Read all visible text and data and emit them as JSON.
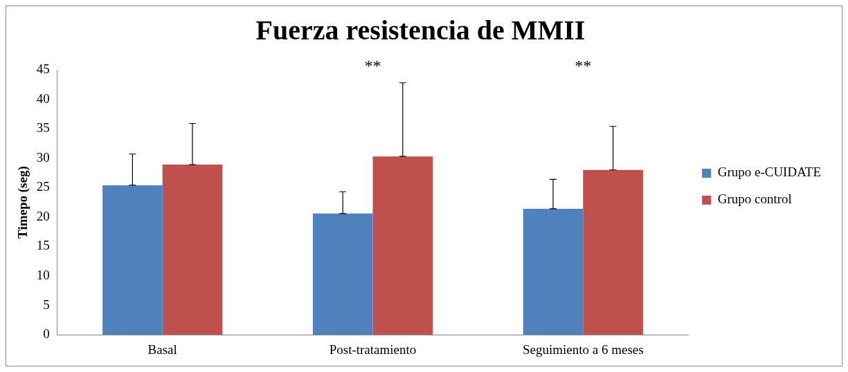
{
  "chart_data": {
    "type": "bar",
    "title": "Fuerza resistencia de MMII",
    "ylabel": "Timepo (seg)",
    "categories": [
      "Basal",
      "Post-tratamiento",
      "Seguimiento a 6 meses"
    ],
    "series": [
      {
        "name": "Grupo e-CUIDATE",
        "color": "#4f81bd",
        "values": [
          25.4,
          20.6,
          21.4
        ],
        "errors": [
          [
            25.4,
            30.7
          ],
          [
            20.6,
            24.3
          ],
          [
            21.4,
            26.4
          ]
        ]
      },
      {
        "name": "Grupo control",
        "color": "#c0504d",
        "values": [
          28.9,
          30.3,
          28.0
        ],
        "errors": [
          [
            28.9,
            35.9
          ],
          [
            30.3,
            42.8
          ],
          [
            28.0,
            35.4
          ]
        ]
      }
    ],
    "ylim": [
      0,
      45
    ],
    "yticks": [
      0,
      5,
      10,
      15,
      20,
      25,
      30,
      35,
      40,
      45
    ],
    "grid": false,
    "legend": "right",
    "annotations": [
      "**",
      "**"
    ]
  }
}
